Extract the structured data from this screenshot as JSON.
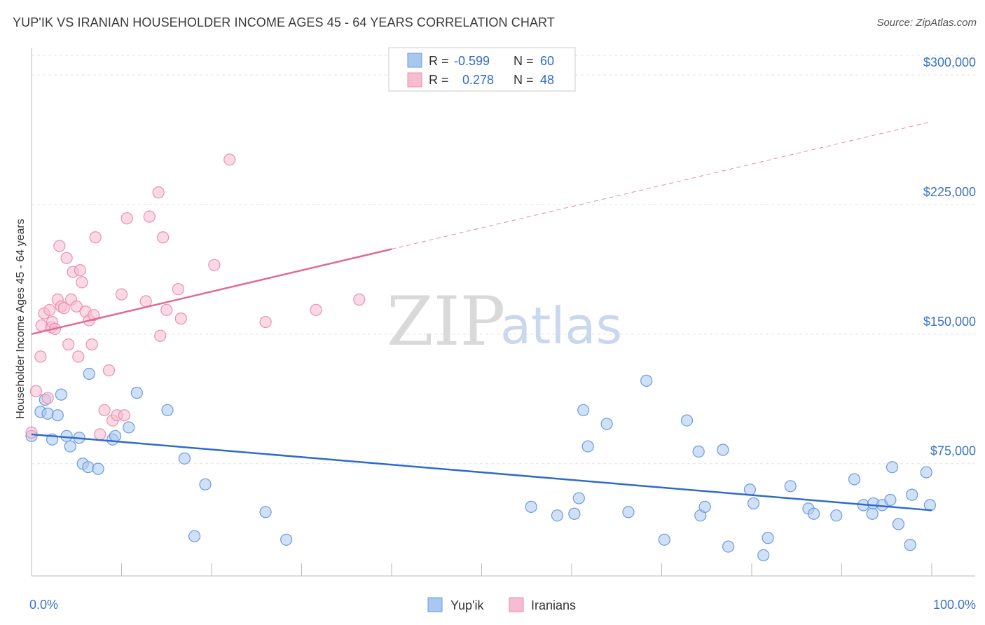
{
  "title": "YUP'IK VS IRANIAN HOUSEHOLDER INCOME AGES 45 - 64 YEARS CORRELATION CHART",
  "source": "Source: ZipAtlas.com",
  "watermark": {
    "zip": "ZIP",
    "atlas": "atlas"
  },
  "legend_top": {
    "rows": [
      {
        "r_label": "R =",
        "r_value": "-0.599",
        "n_label": "N =",
        "n_value": "60",
        "color": "#a9c8f0",
        "stroke": "#6a9be0"
      },
      {
        "r_label": "R =",
        "r_value": "0.278",
        "n_label": "N =",
        "n_value": "48",
        "color": "#f8bcd0",
        "stroke": "#ec8fb0"
      }
    ]
  },
  "legend_bottom": [
    "Yup'ik",
    "Iranians"
  ],
  "chart_data": {
    "type": "scatter",
    "title": "YUP'IK VS IRANIAN HOUSEHOLDER INCOME AGES 45 - 64 YEARS CORRELATION CHART",
    "xlabel": "",
    "ylabel": "Householder Income Ages 45 - 64 years",
    "xlim": [
      0,
      100
    ],
    "ylim": [
      10000,
      315000
    ],
    "x_tick_labels": [
      "0.0%",
      "100.0%"
    ],
    "y_ticks": [
      75000,
      150000,
      225000,
      300000
    ],
    "y_tick_labels": [
      "$75,000",
      "$150,000",
      "$225,000",
      "$300,000"
    ],
    "grid": true,
    "legend_position": "bottom",
    "series": [
      {
        "name": "Yup'ik",
        "color": "#a9c8f0",
        "stroke": "#6a9be0",
        "line_color": "#2f6cc9",
        "trend": {
          "x0": 0,
          "y0": 92000,
          "x1": 100,
          "y1": 48000,
          "dash_from": null
        },
        "points": [
          [
            0.0,
            91000
          ],
          [
            1.0,
            105000
          ],
          [
            1.5,
            112000
          ],
          [
            1.8,
            104000
          ],
          [
            2.3,
            89000
          ],
          [
            2.9,
            103000
          ],
          [
            3.3,
            115000
          ],
          [
            3.9,
            91000
          ],
          [
            4.3,
            85000
          ],
          [
            5.3,
            90000
          ],
          [
            5.7,
            75000
          ],
          [
            6.4,
            127000
          ],
          [
            6.3,
            73000
          ],
          [
            7.4,
            72000
          ],
          [
            9.0,
            89000
          ],
          [
            9.3,
            91000
          ],
          [
            10.8,
            96000
          ],
          [
            11.7,
            116000
          ],
          [
            15.1,
            106000
          ],
          [
            17.0,
            78000
          ],
          [
            18.1,
            33000
          ],
          [
            19.3,
            63000
          ],
          [
            26.0,
            47000
          ],
          [
            28.3,
            31000
          ],
          [
            55.5,
            50000
          ],
          [
            58.4,
            45000
          ],
          [
            60.3,
            46000
          ],
          [
            60.8,
            55000
          ],
          [
            61.3,
            106000
          ],
          [
            61.8,
            85000
          ],
          [
            63.9,
            98000
          ],
          [
            66.3,
            47000
          ],
          [
            68.3,
            123000
          ],
          [
            70.3,
            31000
          ],
          [
            72.8,
            100000
          ],
          [
            74.1,
            82000
          ],
          [
            74.3,
            45000
          ],
          [
            74.8,
            50000
          ],
          [
            76.8,
            83000
          ],
          [
            77.4,
            27000
          ],
          [
            79.8,
            60000
          ],
          [
            80.2,
            52000
          ],
          [
            81.3,
            22000
          ],
          [
            81.8,
            32000
          ],
          [
            84.3,
            62000
          ],
          [
            86.3,
            49000
          ],
          [
            86.9,
            46000
          ],
          [
            89.4,
            45000
          ],
          [
            91.4,
            66000
          ],
          [
            92.4,
            51000
          ],
          [
            93.4,
            46000
          ],
          [
            93.5,
            52000
          ],
          [
            94.5,
            51000
          ],
          [
            95.4,
            54000
          ],
          [
            95.6,
            73000
          ],
          [
            96.3,
            40000
          ],
          [
            97.6,
            28000
          ],
          [
            97.8,
            57000
          ],
          [
            99.4,
            70000
          ],
          [
            99.8,
            51000
          ]
        ]
      },
      {
        "name": "Iranians",
        "color": "#f8bcd0",
        "stroke": "#ec8fb0",
        "line_color": "#e06a94",
        "trend": {
          "x0": 0,
          "y0": 150000,
          "x1": 100,
          "y1": 273000,
          "dash_from": 40
        },
        "points": [
          [
            0.0,
            93000
          ],
          [
            0.5,
            117000
          ],
          [
            1.0,
            137000
          ],
          [
            1.1,
            155000
          ],
          [
            1.4,
            162000
          ],
          [
            1.8,
            113000
          ],
          [
            2.0,
            164000
          ],
          [
            2.2,
            154000
          ],
          [
            2.3,
            157000
          ],
          [
            2.6,
            153000
          ],
          [
            2.9,
            170000
          ],
          [
            3.1,
            201000
          ],
          [
            3.3,
            166000
          ],
          [
            3.6,
            165000
          ],
          [
            3.9,
            194000
          ],
          [
            4.1,
            144000
          ],
          [
            4.4,
            170000
          ],
          [
            4.6,
            186000
          ],
          [
            5.0,
            166000
          ],
          [
            5.2,
            137000
          ],
          [
            5.4,
            187000
          ],
          [
            5.6,
            180000
          ],
          [
            6.0,
            163000
          ],
          [
            6.4,
            158000
          ],
          [
            6.7,
            144000
          ],
          [
            6.9,
            161000
          ],
          [
            7.1,
            206000
          ],
          [
            7.6,
            92000
          ],
          [
            8.1,
            106000
          ],
          [
            8.6,
            129000
          ],
          [
            9.0,
            100000
          ],
          [
            9.5,
            103000
          ],
          [
            10.0,
            173000
          ],
          [
            10.3,
            103000
          ],
          [
            10.6,
            217000
          ],
          [
            12.7,
            169000
          ],
          [
            13.1,
            218000
          ],
          [
            14.1,
            232000
          ],
          [
            14.3,
            149000
          ],
          [
            14.6,
            206000
          ],
          [
            15.0,
            164000
          ],
          [
            16.3,
            176000
          ],
          [
            16.6,
            159000
          ],
          [
            20.3,
            190000
          ],
          [
            22.0,
            251000
          ],
          [
            26.0,
            157000
          ],
          [
            31.6,
            164000
          ],
          [
            36.4,
            170000
          ]
        ]
      }
    ]
  }
}
